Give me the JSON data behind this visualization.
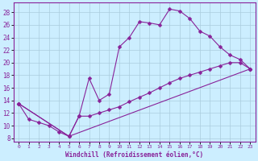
{
  "xlabel": "Windchill (Refroidissement éolien,°C)",
  "bg_color": "#cceeff",
  "grid_color": "#aaccdd",
  "line_color": "#882299",
  "xlim": [
    -0.5,
    23.5
  ],
  "ylim": [
    7.5,
    29.5
  ],
  "xticks": [
    0,
    1,
    2,
    3,
    4,
    5,
    6,
    7,
    8,
    9,
    10,
    11,
    12,
    13,
    14,
    15,
    16,
    17,
    18,
    19,
    20,
    21,
    22,
    23
  ],
  "yticks": [
    8,
    10,
    12,
    14,
    16,
    18,
    20,
    22,
    24,
    26,
    28
  ],
  "line1_x": [
    0,
    1,
    2,
    3,
    4,
    5,
    6,
    7,
    8,
    9,
    10,
    11,
    12,
    13,
    14,
    15,
    16,
    17,
    18,
    19,
    20,
    21,
    22,
    23
  ],
  "line1_y": [
    13.5,
    11,
    10.5,
    10,
    9,
    8.3,
    11.5,
    17.5,
    14,
    15,
    22.5,
    24,
    26.5,
    26.3,
    26,
    28.5,
    28.2,
    27,
    25,
    24.2,
    22.5,
    21.2,
    20.5,
    19
  ],
  "line2_x": [
    0,
    5,
    6,
    7,
    8,
    9,
    10,
    11,
    12,
    13,
    14,
    15,
    16,
    17,
    18,
    19,
    20,
    21,
    22,
    23
  ],
  "line2_y": [
    13.5,
    8.3,
    11.5,
    11.5,
    12,
    12.5,
    13,
    13.8,
    14.5,
    15.2,
    16,
    16.8,
    17.5,
    18,
    18.5,
    19,
    19.5,
    20,
    20,
    19
  ],
  "line3_x": [
    0,
    5,
    23
  ],
  "line3_y": [
    13.5,
    8.3,
    19
  ]
}
